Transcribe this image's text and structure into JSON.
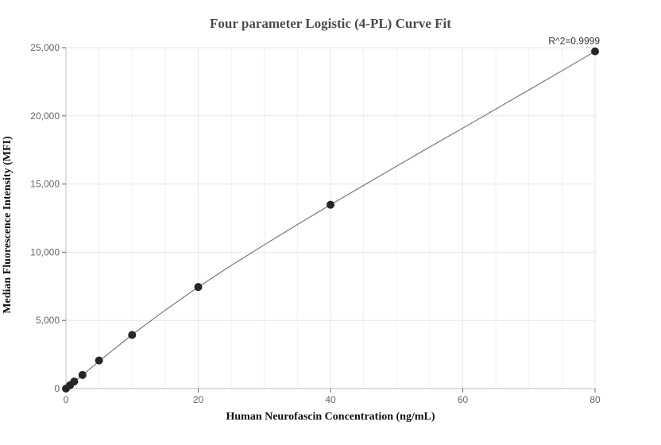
{
  "chart_data": {
    "type": "scatter",
    "title": "Four parameter Logistic (4-PL) Curve Fit",
    "xlabel": "Human Neurofascin Concentration (ng/mL)",
    "ylabel": "Median Fluorescence Intensity (MFI)",
    "xlim": [
      0,
      80
    ],
    "ylim": [
      0,
      25000
    ],
    "x_ticks": [
      0,
      20,
      40,
      60,
      80
    ],
    "y_ticks": [
      0,
      5000,
      10000,
      15000,
      20000,
      25000
    ],
    "x_tick_labels": [
      "0",
      "20",
      "40",
      "60",
      "80"
    ],
    "y_tick_labels": [
      "0",
      "5,000",
      "10,000",
      "15,000",
      "20,000",
      "25,000"
    ],
    "grid": true,
    "annotation": "R^2=0.9999",
    "series": [
      {
        "points": [
          {
            "x": 0,
            "y": 0
          },
          {
            "x": 0.625,
            "y": 250
          },
          {
            "x": 1.25,
            "y": 520
          },
          {
            "x": 2.5,
            "y": 1000
          },
          {
            "x": 5,
            "y": 2060
          },
          {
            "x": 10,
            "y": 3930
          },
          {
            "x": 20,
            "y": 7450
          },
          {
            "x": 40,
            "y": 13480
          },
          {
            "x": 80,
            "y": 24730
          }
        ]
      }
    ],
    "fit_curve": {
      "x": [
        0,
        5,
        10,
        15,
        20,
        25,
        30,
        35,
        40,
        45,
        50,
        55,
        60,
        65,
        70,
        75,
        80
      ],
      "y": [
        0,
        2000,
        3950,
        5750,
        7450,
        9030,
        10550,
        12030,
        13480,
        14900,
        16310,
        17720,
        19100,
        20500,
        21900,
        23310,
        24730
      ]
    },
    "colors": {
      "point": "#262626",
      "fit_line": "#7a7a7a",
      "grid": "#e6e6ee",
      "axis": "#bfbfbf"
    }
  }
}
